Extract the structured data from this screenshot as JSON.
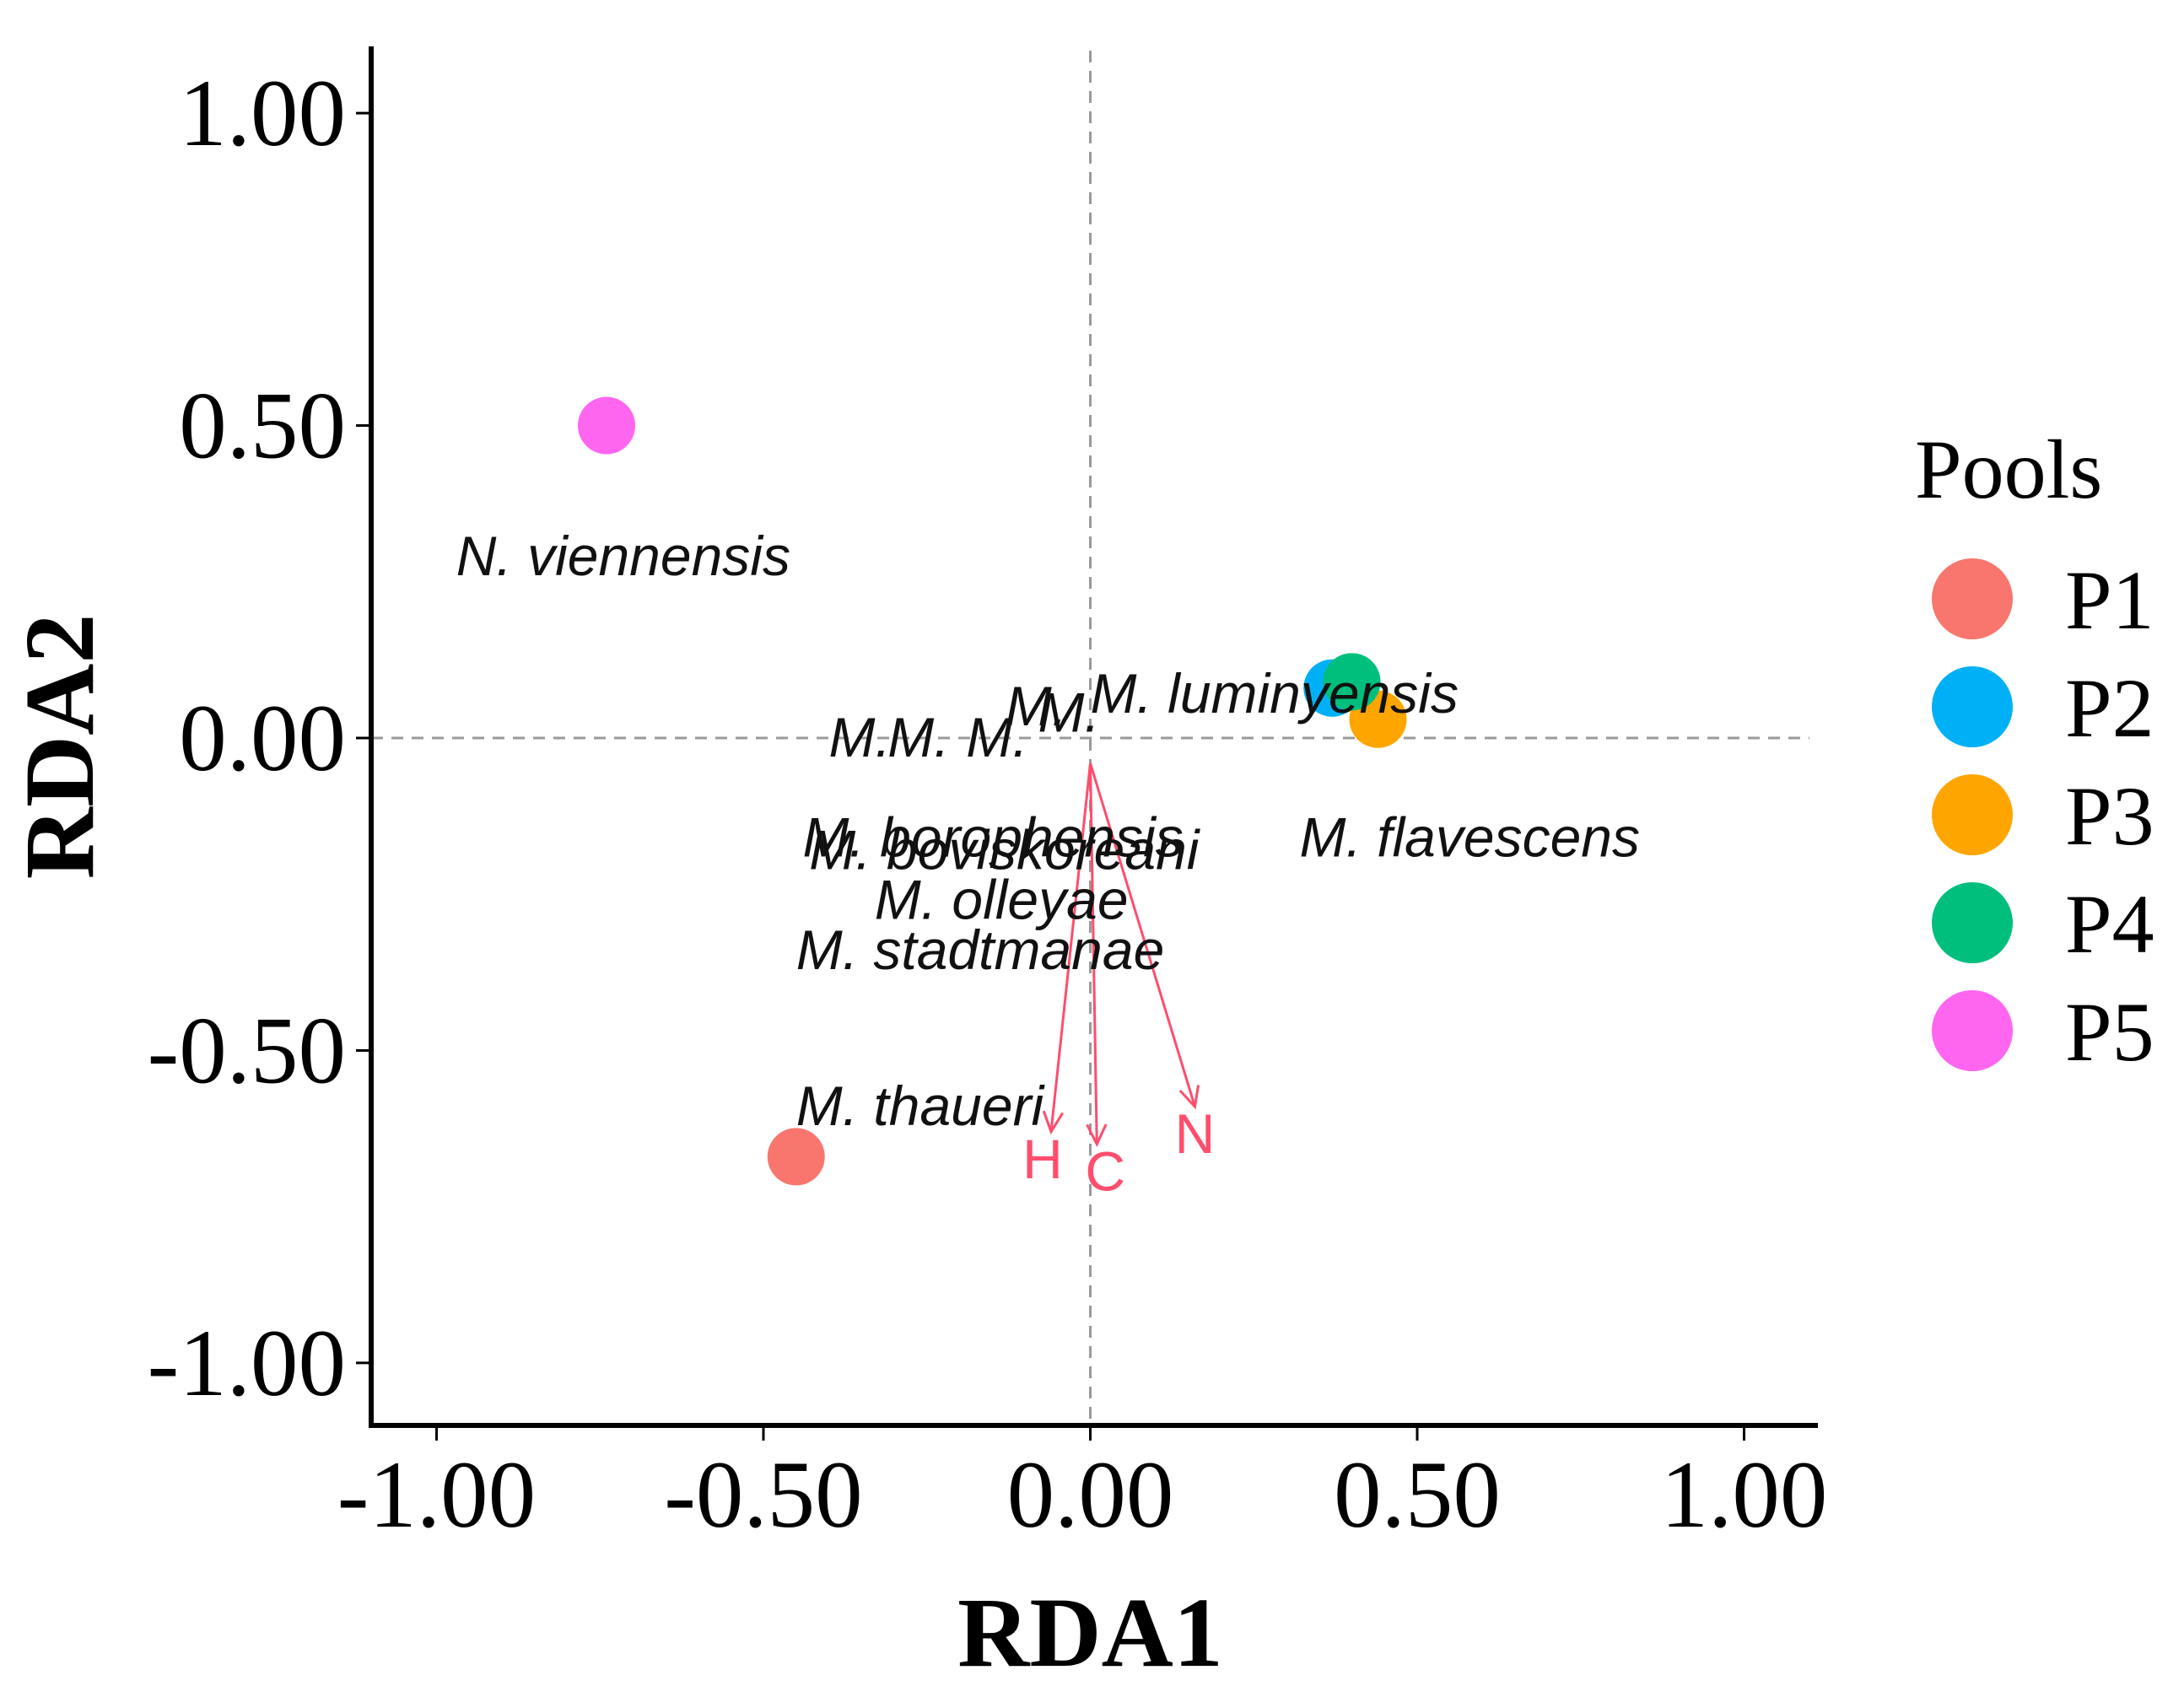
{
  "chart_data": {
    "type": "scatter",
    "title": "",
    "xlabel": "RDA1",
    "ylabel": "RDA2",
    "xlim": [
      -1.1,
      1.1
    ],
    "ylim": [
      -1.1,
      1.1
    ],
    "xticks": [
      -1.0,
      -0.5,
      0.0,
      0.5,
      1.0
    ],
    "yticks": [
      -1.0,
      -0.5,
      0.0,
      0.5,
      1.0
    ],
    "xtick_labels": [
      "-1.00",
      "-0.50",
      "0.00",
      "0.50",
      "1.00"
    ],
    "ytick_labels": [
      "-1.00",
      "-0.50",
      "0.00",
      "0.50",
      "1.00"
    ],
    "grid": false,
    "reference_lines": {
      "x": 0,
      "y": 0,
      "style": "dashed"
    },
    "legend": {
      "title": "Pools",
      "position": "right",
      "entries": [
        {
          "name": "P1",
          "color": "#F8766D"
        },
        {
          "name": "P2",
          "color": "#00B0F6"
        },
        {
          "name": "P3",
          "color": "#FFA500"
        },
        {
          "name": "P4",
          "color": "#00BF7D"
        },
        {
          "name": "P5",
          "color": "#FF66F0"
        }
      ]
    },
    "series": [
      {
        "name": "P1",
        "x": -0.45,
        "y": -0.67,
        "color": "#F8766D"
      },
      {
        "name": "P2",
        "x": 0.37,
        "y": 0.08,
        "color": "#00B0F6"
      },
      {
        "name": "P3",
        "x": 0.44,
        "y": 0.03,
        "color": "#FFA500"
      },
      {
        "name": "P4",
        "x": 0.4,
        "y": 0.09,
        "color": "#00BF7D"
      },
      {
        "name": "P5",
        "x": -0.74,
        "y": 0.5,
        "color": "#FF66F0"
      }
    ],
    "species_labels": [
      {
        "text": "N.  viennensis",
        "x": -0.97,
        "y": 0.29
      },
      {
        "text": "M. luminyensis",
        "x": 0.0,
        "y": 0.07
      },
      {
        "text": "M. ",
        "x": -0.4,
        "y": 0.0
      },
      {
        "text": "M. ",
        "x": -0.31,
        "y": 0.0
      },
      {
        "text": "M. ",
        "x": -0.19,
        "y": 0.0
      },
      {
        "text": "M. ",
        "x": -0.13,
        "y": 0.05
      },
      {
        "text": "M. ",
        "x": -0.08,
        "y": 0.04
      },
      {
        "text": "M.  borophensis",
        "x": -0.44,
        "y": -0.16
      },
      {
        "text": "M.  boviskoreani",
        "x": -0.43,
        "y": -0.18
      },
      {
        "text": "M.  flavescens",
        "x": 0.32,
        "y": -0.16
      },
      {
        "text": "M.  olleyae",
        "x": -0.33,
        "y": -0.26
      },
      {
        "text": "M.  stadtmanae",
        "x": -0.45,
        "y": -0.34
      },
      {
        "text": "M.  thaueri",
        "x": -0.45,
        "y": -0.59
      }
    ],
    "environment_vectors": [
      {
        "name": "H",
        "x": -0.06,
        "y": -0.63
      },
      {
        "name": "C",
        "x": 0.01,
        "y": -0.65
      },
      {
        "name": "N",
        "x": 0.16,
        "y": -0.59
      }
    ]
  }
}
